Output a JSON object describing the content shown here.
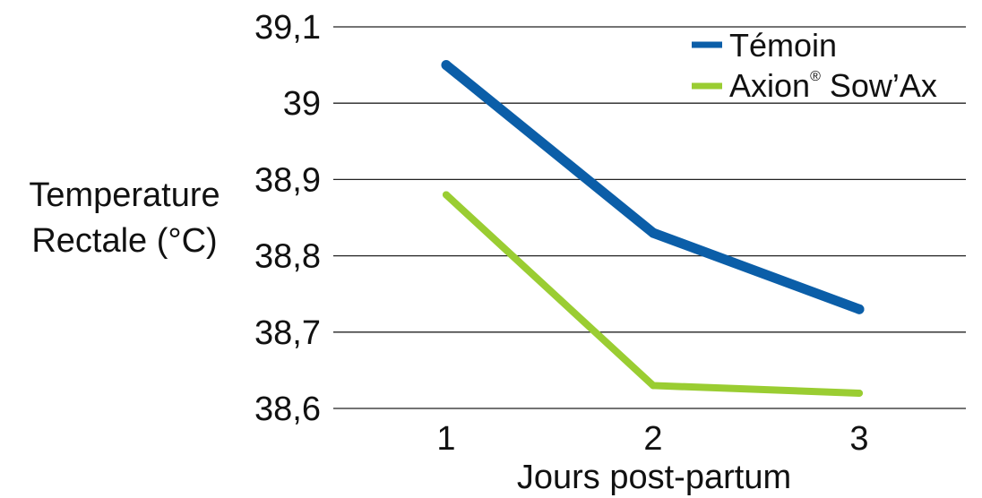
{
  "chart_data": {
    "type": "line",
    "title": "",
    "xlabel": "Jours post-partum",
    "ylabel_lines": [
      "Temperature",
      "Rectale (°C)"
    ],
    "categories": [
      "1",
      "2",
      "3"
    ],
    "x_tick_labels": [
      "1",
      "2",
      "3"
    ],
    "ylim": [
      38.6,
      39.1
    ],
    "y_ticks": [
      38.6,
      38.7,
      38.8,
      38.9,
      39.0,
      39.1
    ],
    "y_tick_labels": [
      "38,6",
      "38,7",
      "38,8",
      "38,9",
      "39",
      "39,1"
    ],
    "grid": true,
    "legend_position": "top-right",
    "series": [
      {
        "name": "Témoin",
        "color": "#0b5ea8",
        "values": [
          39.05,
          38.83,
          38.73
        ]
      },
      {
        "name": "Axion",
        "name_superscript": "®",
        "name_suffix": " Sow’Ax",
        "color": "#9acd32",
        "values": [
          38.88,
          38.63,
          38.62
        ]
      }
    ]
  }
}
